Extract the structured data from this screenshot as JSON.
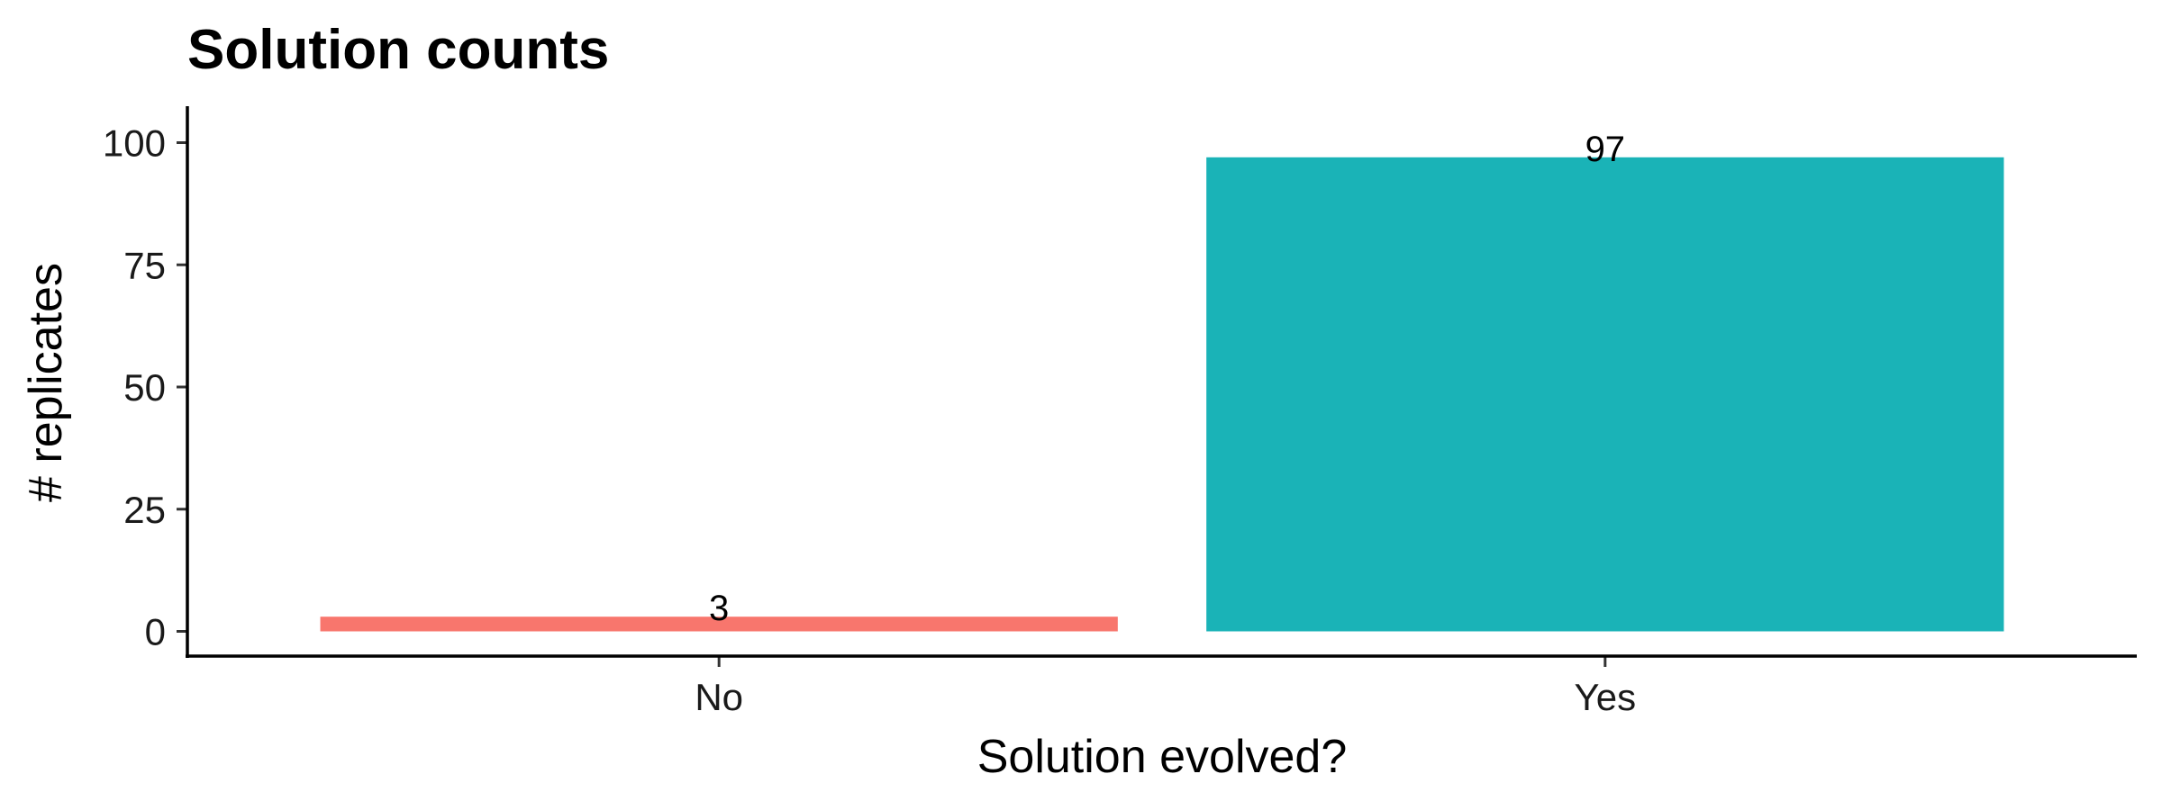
{
  "chart_data": {
    "type": "bar",
    "title": "Solution counts",
    "xlabel": "Solution evolved?",
    "ylabel": "# replicates",
    "categories": [
      "No",
      "Yes"
    ],
    "values": [
      3,
      97
    ],
    "data_labels": [
      "3",
      "97"
    ],
    "colors": [
      "#F8766D",
      "#1AB3B7"
    ],
    "ylim": [
      0,
      105
    ],
    "yticks": [
      0,
      25,
      50,
      75,
      100
    ],
    "grid": false,
    "legend": "none"
  }
}
